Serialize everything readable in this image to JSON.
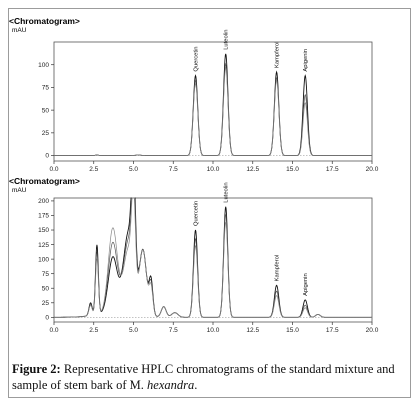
{
  "figure": {
    "caption_label": "Figure 2:",
    "caption_text": " Representative HPLC chromatograms of the standard mixture and sample of stem bark of M. ",
    "caption_italic": "hexandra",
    "caption_end": "."
  },
  "chart_data": [
    {
      "type": "line",
      "title": "<Chromatogram>",
      "ylabel": "mAU",
      "xlim": [
        0.0,
        20.0
      ],
      "ylim": [
        -6,
        125
      ],
      "xticks": [
        "0.0",
        "2.5",
        "5.0",
        "7.5",
        "10.0",
        "12.5",
        "15.0",
        "17.5",
        "20.0"
      ],
      "yticks": [
        "0",
        "25",
        "50",
        "75",
        "100"
      ],
      "peaks": [
        {
          "name": "Quercetin",
          "x": 8.9,
          "y": 88
        },
        {
          "name": "Luteolin",
          "x": 10.8,
          "y": 112
        },
        {
          "name": "Kampferol",
          "x": 14.0,
          "y": 92
        },
        {
          "name": "Apigenin",
          "x": 15.8,
          "y": 88
        }
      ],
      "series_count": 3
    },
    {
      "type": "line",
      "title": "<Chromatogram>",
      "ylabel": "mAU",
      "xlim": [
        0.0,
        20.0
      ],
      "ylim": [
        -8,
        205
      ],
      "xticks": [
        "0.0",
        "2.5",
        "5.0",
        "7.5",
        "10.0",
        "12.5",
        "15.0",
        "17.5",
        "20.0"
      ],
      "yticks": [
        "0",
        "25",
        "50",
        "75",
        "100",
        "125",
        "150",
        "175",
        "200"
      ],
      "peaks": [
        {
          "name": "Quercetin",
          "x": 8.9,
          "y": 150
        },
        {
          "name": "Luteolin",
          "x": 10.8,
          "y": 190
        },
        {
          "name": "Kampferol",
          "x": 14.0,
          "y": 55
        },
        {
          "name": "Apigenin",
          "x": 15.8,
          "y": 30
        }
      ],
      "series_count": 3
    }
  ]
}
